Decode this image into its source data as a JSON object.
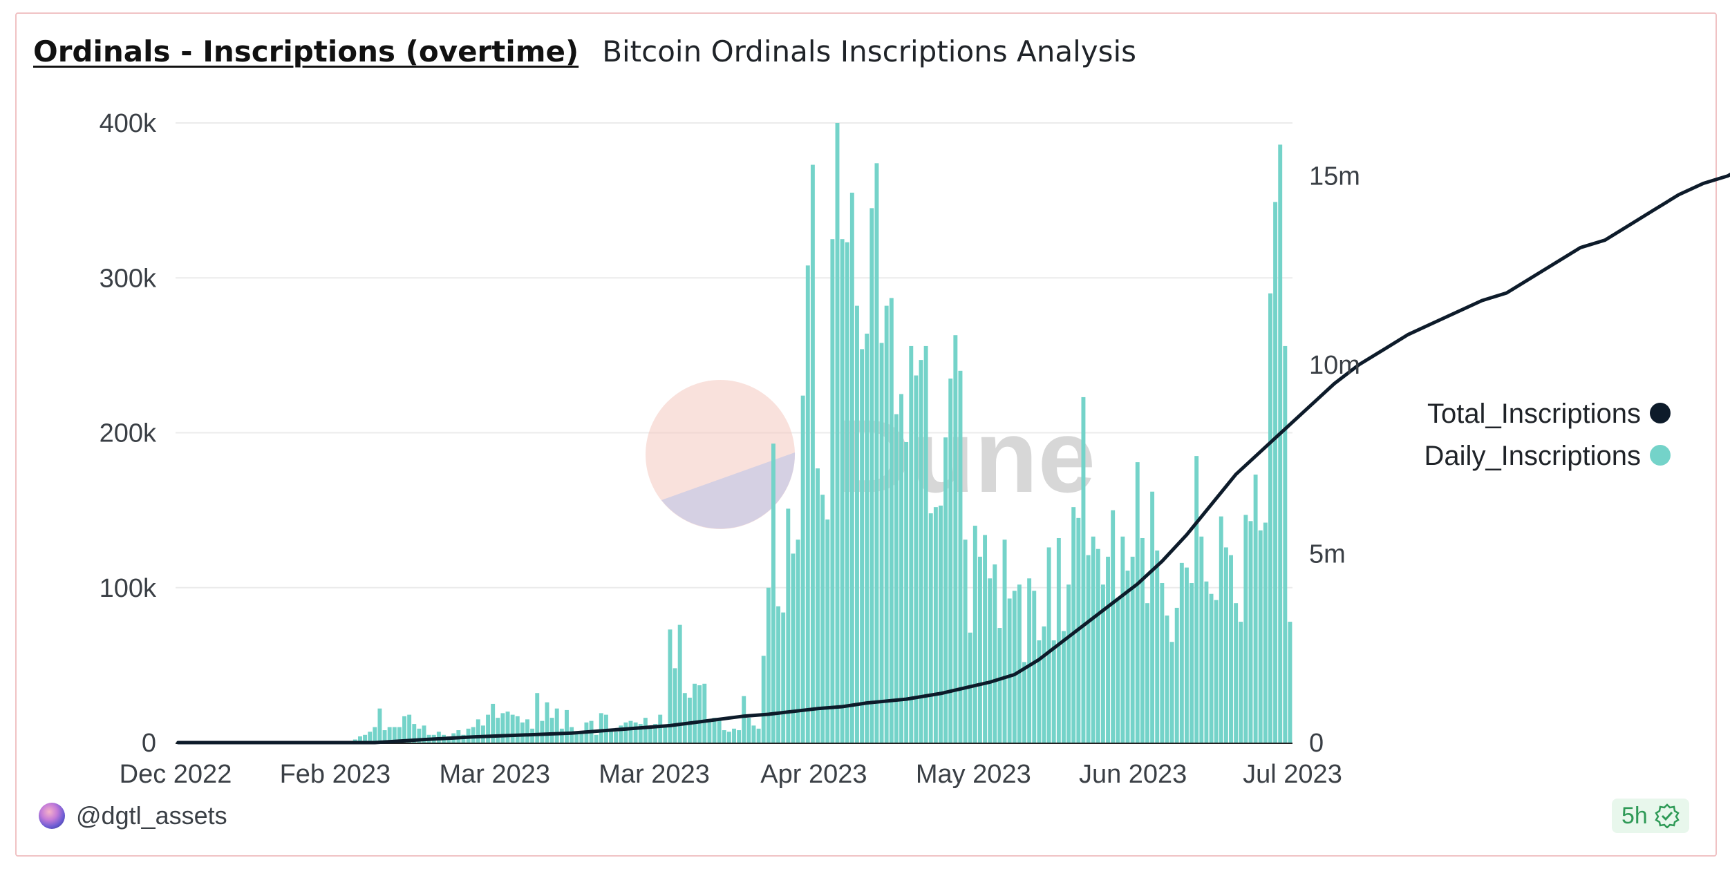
{
  "header": {
    "title": "Ordinals - Inscriptions (overtime)",
    "subtitle": "Bitcoin Ordinals Inscriptions Analysis"
  },
  "watermark": {
    "text": "Dune"
  },
  "footer": {
    "author": "@dgtl_assets",
    "refresh": "5h"
  },
  "colors": {
    "bars": "#74d3c9",
    "line": "#0d1b2a",
    "grid": "#ebebeb"
  },
  "chart_data": {
    "type": "bar",
    "title": "Ordinals - Inscriptions (overtime)",
    "x_ticks": [
      "Dec 2022",
      "Feb 2023",
      "Mar 2023",
      "Mar 2023",
      "Apr 2023",
      "May 2023",
      "Jun 2023",
      "Jul 2023"
    ],
    "y_left": {
      "ticks": [
        "0",
        "100k",
        "200k",
        "300k",
        "400k"
      ],
      "range": [
        0,
        400000
      ]
    },
    "y_right": {
      "ticks": [
        "0",
        "5m",
        "10m",
        "15m"
      ],
      "range": [
        0,
        16400000
      ]
    },
    "legend": {
      "position": "right",
      "entries": [
        "Total_Inscriptions",
        "Daily_Inscriptions"
      ]
    },
    "series": [
      {
        "name": "Daily_Inscriptions",
        "type": "bar",
        "axis": "left",
        "values": [
          0,
          0,
          0,
          0,
          0,
          0,
          0,
          0,
          0,
          0,
          0,
          0,
          0,
          0,
          0,
          0,
          0,
          0,
          0,
          0,
          0,
          0,
          0,
          0,
          0,
          0,
          0,
          0,
          0,
          0,
          0,
          0,
          0,
          0,
          0,
          0,
          2000,
          4000,
          5000,
          7000,
          10000,
          22000,
          8000,
          10000,
          10000,
          10000,
          17000,
          18000,
          12000,
          9000,
          11000,
          5000,
          5000,
          7000,
          5000,
          4000,
          6000,
          8000,
          5000,
          9000,
          10000,
          15000,
          11000,
          18000,
          25000,
          16000,
          19000,
          20000,
          18000,
          17000,
          13000,
          15000,
          9000,
          32000,
          14000,
          26000,
          16000,
          22000,
          9000,
          21000,
          10000,
          6000,
          7000,
          13000,
          14000,
          5000,
          19000,
          18000,
          8000,
          7000,
          11000,
          13000,
          14000,
          13000,
          12000,
          16000,
          9000,
          12000,
          18000,
          10000,
          73000,
          48000,
          76000,
          32000,
          29000,
          38000,
          37000,
          38000,
          14000,
          16000,
          16000,
          8000,
          7000,
          9000,
          8000,
          30000,
          16000,
          11000,
          9000,
          56000,
          100000,
          193000,
          88000,
          84000,
          151000,
          122000,
          131000,
          224000,
          308000,
          373000,
          177000,
          160000,
          144000,
          325000,
          400000,
          325000,
          323000,
          355000,
          282000,
          254000,
          264000,
          345000,
          374000,
          258000,
          282000,
          287000,
          212000,
          225000,
          194000,
          256000,
          237000,
          247000,
          256000,
          148000,
          152000,
          153000,
          197000,
          235000,
          263000,
          240000,
          131000,
          71000,
          140000,
          120000,
          134000,
          106000,
          115000,
          74000,
          131000,
          93000,
          98000,
          102000,
          52000,
          106000,
          98000,
          66000,
          75000,
          126000,
          66000,
          132000,
          72000,
          102000,
          152000,
          145000,
          223000,
          121000,
          133000,
          125000,
          102000,
          120000,
          150000,
          93000,
          133000,
          111000,
          120000,
          181000,
          132000,
          90000,
          162000,
          124000,
          103000,
          82000,
          65000,
          87000,
          116000,
          113000,
          103000,
          185000,
          133000,
          104000,
          96000,
          92000,
          146000,
          126000,
          121000,
          90000,
          78000,
          147000,
          143000,
          173000,
          137000,
          142000,
          290000,
          349000,
          386000,
          256000,
          78000
        ]
      },
      {
        "name": "Total_Inscriptions",
        "type": "line",
        "axis": "right",
        "points": [
          [
            0,
            0
          ],
          [
            40,
            0
          ],
          [
            50,
            80000
          ],
          [
            60,
            150000
          ],
          [
            80,
            250000
          ],
          [
            100,
            450000
          ],
          [
            115,
            700000
          ],
          [
            120,
            750000
          ],
          [
            130,
            900000
          ],
          [
            135,
            950000
          ],
          [
            140,
            1050000
          ],
          [
            148,
            1150000
          ],
          [
            155,
            1300000
          ],
          [
            160,
            1450000
          ],
          [
            165,
            1600000
          ],
          [
            170,
            1800000
          ],
          [
            175,
            2200000
          ],
          [
            180,
            2700000
          ],
          [
            185,
            3200000
          ],
          [
            190,
            3700000
          ],
          [
            195,
            4200000
          ],
          [
            200,
            4800000
          ],
          [
            205,
            5500000
          ],
          [
            210,
            6300000
          ],
          [
            215,
            7100000
          ],
          [
            220,
            7700000
          ],
          [
            225,
            8300000
          ],
          [
            230,
            8900000
          ],
          [
            235,
            9500000
          ],
          [
            240,
            10000000
          ],
          [
            245,
            10400000
          ],
          [
            250,
            10800000
          ],
          [
            255,
            11100000
          ],
          [
            260,
            11400000
          ],
          [
            265,
            11700000
          ],
          [
            270,
            11900000
          ],
          [
            275,
            12300000
          ],
          [
            280,
            12700000
          ],
          [
            285,
            13100000
          ],
          [
            290,
            13300000
          ],
          [
            295,
            13700000
          ],
          [
            300,
            14100000
          ],
          [
            305,
            14500000
          ],
          [
            310,
            14800000
          ],
          [
            315,
            15000000
          ],
          [
            320,
            15400000
          ],
          [
            325,
            15800000
          ],
          [
            330,
            16300000
          ],
          [
            336,
            16500000
          ]
        ]
      }
    ]
  }
}
